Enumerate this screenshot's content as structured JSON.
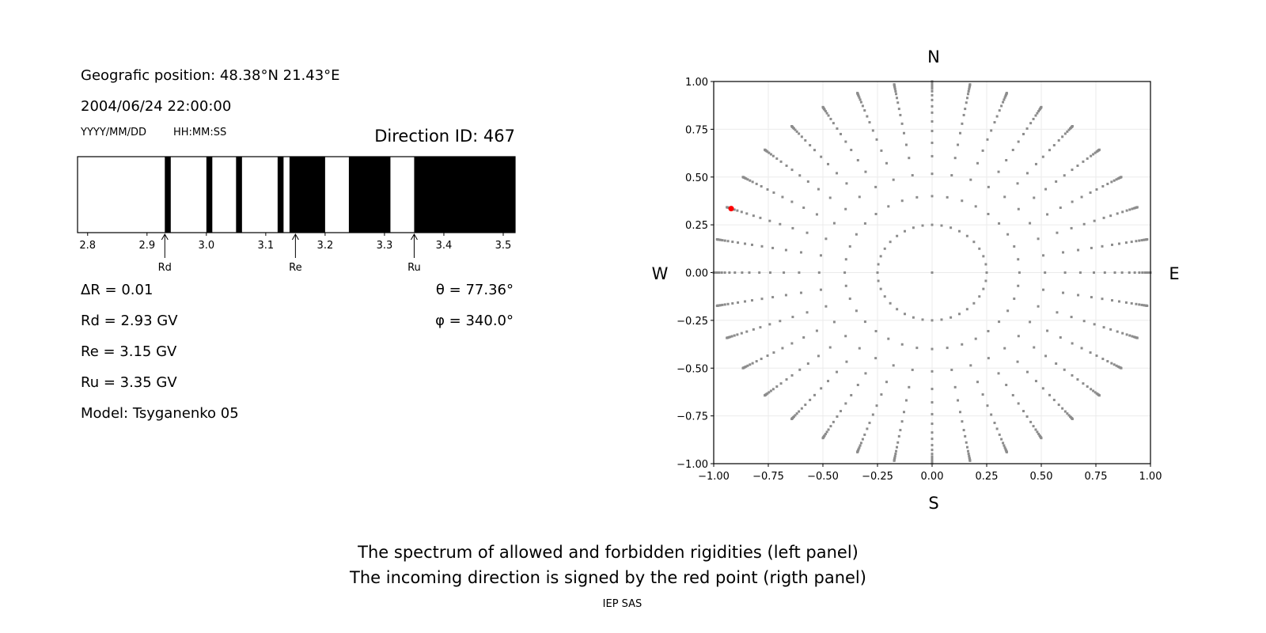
{
  "left_panel": {
    "position": "Geografic position: 48.38°N 21.43°E",
    "datetime": "2004/06/24 22:00:00",
    "date_format": "YYYY/MM/DD",
    "time_format": "HH:MM:SS",
    "direction_id": "Direction ID: 467",
    "delta_r": "ΔR = 0.01",
    "rd": "Rd = 2.93 GV",
    "re": "Re = 3.15 GV",
    "ru": "Ru = 3.35 GV",
    "model": "Model: Tsyganenko 05",
    "theta": "θ = 77.36°",
    "phi": "φ = 340.0°"
  },
  "footer": {
    "line1": "The spectrum of allowed and forbidden rigidities (left panel)",
    "line2": "The incoming direction is signed by the red point (rigth panel)",
    "credit": "IEP SAS"
  },
  "chart_data": [
    {
      "type": "bar",
      "description_of_marks": "forbidden rigidity bands (black) on allowed background (white)",
      "xlim": [
        2.783,
        3.52
      ],
      "xticks": [
        "2.8",
        "2.9",
        "3.0",
        "3.1",
        "3.2",
        "3.3",
        "3.4",
        "3.5"
      ],
      "forbidden_bands": [
        [
          2.93,
          2.94
        ],
        [
          3.0,
          3.01
        ],
        [
          3.05,
          3.06
        ],
        [
          3.12,
          3.13
        ],
        [
          3.14,
          3.2
        ],
        [
          3.24,
          3.31
        ],
        [
          3.35,
          3.52
        ]
      ],
      "markers": [
        {
          "label": "Rd",
          "value": 2.93
        },
        {
          "label": "Re",
          "value": 3.15
        },
        {
          "label": "Ru",
          "value": 3.35
        }
      ],
      "colors": {
        "forbidden": "#000000",
        "allowed": "#ffffff"
      }
    },
    {
      "type": "scatter",
      "xlim": [
        -1,
        1
      ],
      "ylim": [
        -1,
        1
      ],
      "xticks": [
        "−1.00",
        "−0.75",
        "−0.50",
        "−0.25",
        "0.00",
        "0.25",
        "0.50",
        "0.75",
        "1.00"
      ],
      "yticks": [
        "−1.00",
        "−0.75",
        "−0.50",
        "−0.25",
        "0.00",
        "0.25",
        "0.50",
        "0.75",
        "1.00"
      ],
      "grid": true,
      "compass": {
        "n": "N",
        "s": "S",
        "e": "E",
        "w": "W"
      },
      "grid_points": {
        "azimuth_step_deg": 10,
        "radii": [
          0.25,
          0.4,
          0.517,
          0.609,
          0.679,
          0.741,
          0.791,
          0.837,
          0.87,
          0.903,
          0.928,
          0.949,
          0.963,
          0.975,
          0.984,
          0.99,
          0.995,
          0.998,
          1.0
        ],
        "center_point": true,
        "color": "#8c8c8c"
      },
      "highlight_point": {
        "x": -0.92,
        "y": 0.335,
        "color": "#ff0000"
      }
    }
  ]
}
